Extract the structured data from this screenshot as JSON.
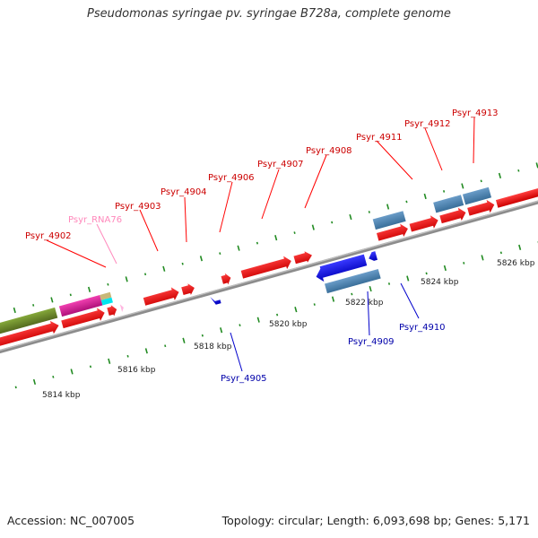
{
  "title": "Pseudomonas syringae pv. syringae B728a, complete genome",
  "footer": {
    "accession": "Accession: NC_007005",
    "summary": "Topology: circular; Length: 6,093,698 bp; Genes: 5,171"
  },
  "colors": {
    "forward_gene": "#ff0000",
    "reverse_gene": "#0000ee",
    "forward_label": "#cc0000",
    "reverse_label": "#0000aa",
    "rna_label": "#ff88bb",
    "cds_bar": "#4682b4",
    "olive_bar": "#6b8e23",
    "magenta_bar": "#e0189a",
    "cyan_bar": "#00e5ee",
    "tick_color": "#228b22",
    "axis_color": "#888888"
  },
  "scale_labels": [
    "5814 kbp",
    "5816 kbp",
    "5818 kbp",
    "5820 kbp",
    "5822 kbp",
    "5824 kbp",
    "5826 kbp"
  ],
  "gene_labels_top": [
    "Psyr_4902",
    "Psyr_RNA76",
    "Psyr_4903",
    "Psyr_4904",
    "Psyr_4906",
    "Psyr_4907",
    "Psyr_4908",
    "Psyr_4911",
    "Psyr_4912",
    "Psyr_4913"
  ],
  "gene_labels_bottom": [
    "Psyr_4905",
    "Psyr_4909",
    "Psyr_4910"
  ]
}
